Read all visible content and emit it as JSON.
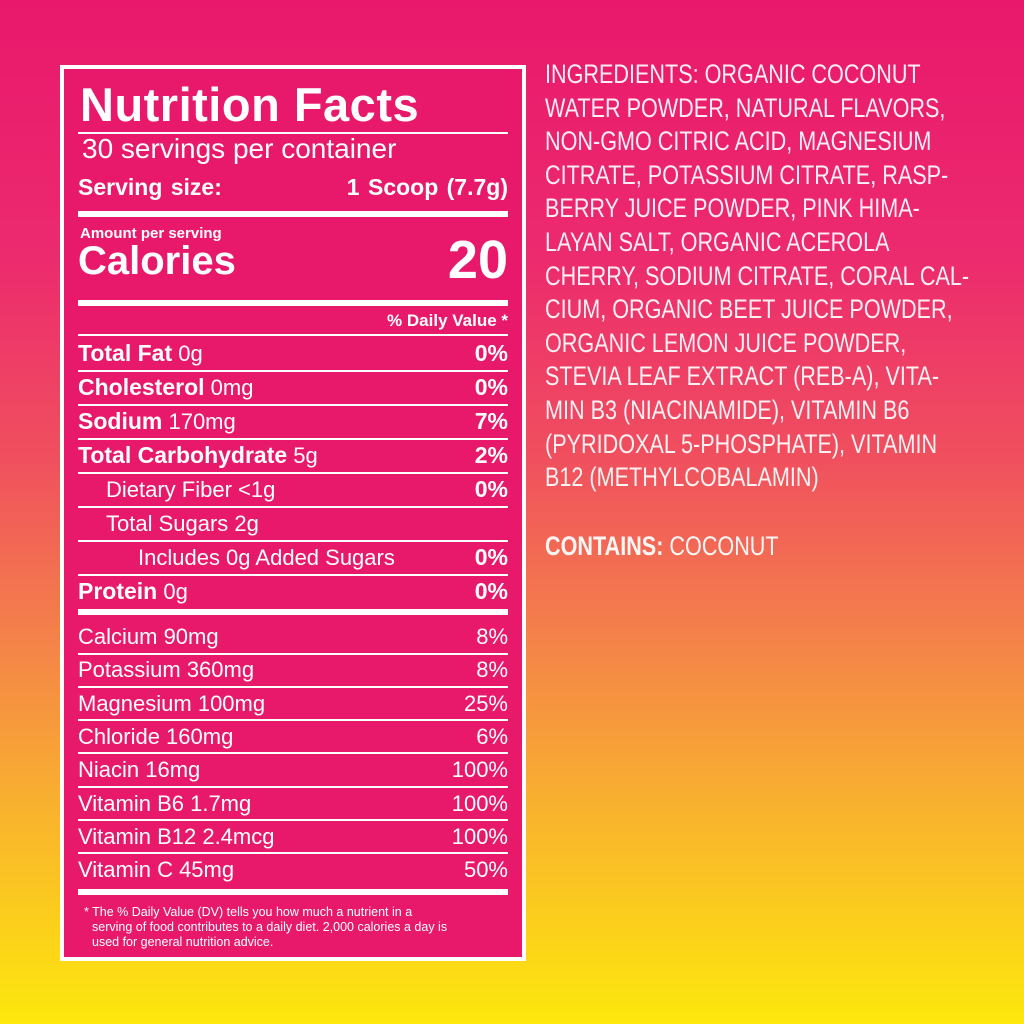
{
  "label": {
    "title": "Nutrition Facts",
    "servings": "30 servings per container",
    "serving_size_label": "Serving size:",
    "serving_size_value": "1 Scoop (7.7g)",
    "amount_per_serving": "Amount per serving",
    "calories_label": "Calories",
    "calories_value": "20",
    "dv_header": "% Daily Value *",
    "rows": [
      {
        "name": "Total Fat",
        "amount": "0g",
        "dv": "0%"
      },
      {
        "name": "Cholesterol",
        "amount": "0mg",
        "dv": "0%"
      },
      {
        "name": "Sodium",
        "amount": "170mg",
        "dv": "7%"
      },
      {
        "name": "Total Carbohydrate",
        "amount": "5g",
        "dv": "2%"
      },
      {
        "name": "Dietary Fiber <1g",
        "amount": "",
        "dv": "0%"
      },
      {
        "name": "Total Sugars 2g",
        "amount": "",
        "dv": ""
      },
      {
        "name": "Includes 0g Added Sugars",
        "amount": "",
        "dv": "0%"
      },
      {
        "name": "Protein",
        "amount": "0g",
        "dv": "0%"
      }
    ],
    "vitamins": [
      {
        "name": "Calcium 90mg",
        "dv": "8%"
      },
      {
        "name": "Potassium 360mg",
        "dv": "8%"
      },
      {
        "name": "Magnesium 100mg",
        "dv": "25%"
      },
      {
        "name": "Chloride 160mg",
        "dv": "6%"
      },
      {
        "name": "Niacin 16mg",
        "dv": "100%"
      },
      {
        "name": "Vitamin B6 1.7mg",
        "dv": "100%"
      },
      {
        "name": "Vitamin B12 2.4mcg",
        "dv": "100%"
      },
      {
        "name": "Vitamin C 45mg",
        "dv": "50%"
      }
    ],
    "footnote": [
      "* The % Daily Value (DV) tells you how much a nutrient in a",
      "serving of food contributes to a daily diet.  2,000 calories a day is",
      "used for general nutrition advice."
    ]
  },
  "ingredients": {
    "lines": [
      "INGREDIENTS: ORGANIC COCONUT",
      "WATER POWDER, NATURAL FLAVORS,",
      "NON-GMO CITRIC ACID,  MAGNESIUM",
      "CITRATE, POTASSIUM CITRATE, RASP-",
      "BERRY JUICE POWDER, PINK HIMA-",
      "LAYAN SALT, ORGANIC ACEROLA",
      "CHERRY, SODIUM CITRATE, CORAL CAL-",
      "CIUM, ORGANIC BEET JUICE POWDER,",
      "ORGANIC LEMON JUICE POWDER,",
      "STEVIA LEAF EXTRACT (REB-A), VITA-",
      "MIN B3 (NIACINAMIDE), VITAMIN B6",
      "(PYRIDOXAL 5-PHOSPHATE), VITAMIN",
      "B12 (METHYLCOBALAMIN)"
    ],
    "contains_label": "CONTAINS:",
    "contains_value": "COCONUT"
  },
  "colors": {
    "panel": "#e8196a",
    "text": "#ffffff",
    "gradient_top": "#e9186c",
    "gradient_bottom": "#fde80c"
  }
}
